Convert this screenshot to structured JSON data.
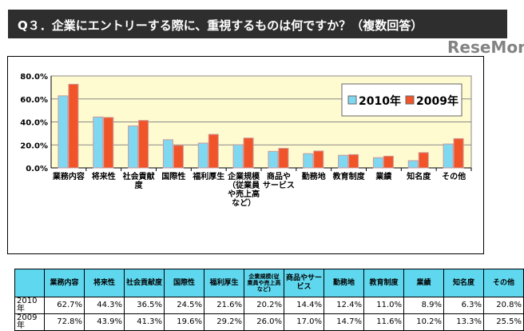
{
  "title": "Q３．企業にエントリーする際に、重視するものは何ですか？（複数回答）",
  "watermark": "ReseMom",
  "chart_data": {
    "type": "bar",
    "categories": [
      "業務内容",
      "将来性",
      "社会貢献度",
      "国際性",
      "福利厚生",
      "企業規模（従業員や売上高など）",
      "商品や サービス",
      "勤務地",
      "教育制度",
      "業績",
      "知名度",
      "その他"
    ],
    "series": [
      {
        "name": "2010年",
        "values": [
          62.7,
          44.3,
          36.5,
          24.5,
          21.6,
          20.2,
          14.4,
          12.4,
          11.0,
          8.9,
          6.3,
          20.8
        ],
        "color": "#7fd8f2"
      },
      {
        "name": "2009年",
        "values": [
          72.8,
          43.9,
          41.3,
          19.6,
          29.2,
          26.0,
          17.0,
          14.7,
          11.6,
          10.2,
          13.3,
          25.5
        ],
        "color": "#f2542a"
      }
    ],
    "yticks": [
      "0.0%",
      "20.0%",
      "40.0%",
      "60.0%",
      "80.0%"
    ],
    "ylim": [
      0,
      80
    ],
    "grid": true,
    "legend": "top-right",
    "plot_bg": "#fffbd0"
  },
  "table": {
    "headers": [
      "",
      "業務内容",
      "将来性",
      "社会貢献度",
      "国際性",
      "福利厚生",
      "企業規模(従業員や売上高など)",
      "商品やサービス",
      "勤務地",
      "教育制度",
      "業績",
      "知名度",
      "その他"
    ],
    "rows": [
      [
        "2010年",
        "62.7%",
        "44.3%",
        "36.5%",
        "24.5%",
        "21.6%",
        "20.2%",
        "14.4%",
        "12.4%",
        "11.0%",
        "8.9%",
        "6.3%",
        "20.8%"
      ],
      [
        "2009年",
        "72.8%",
        "43.9%",
        "41.3%",
        "19.6%",
        "29.2%",
        "26.0%",
        "17.0%",
        "14.7%",
        "11.6%",
        "10.2%",
        "13.3%",
        "25.5%"
      ]
    ]
  }
}
